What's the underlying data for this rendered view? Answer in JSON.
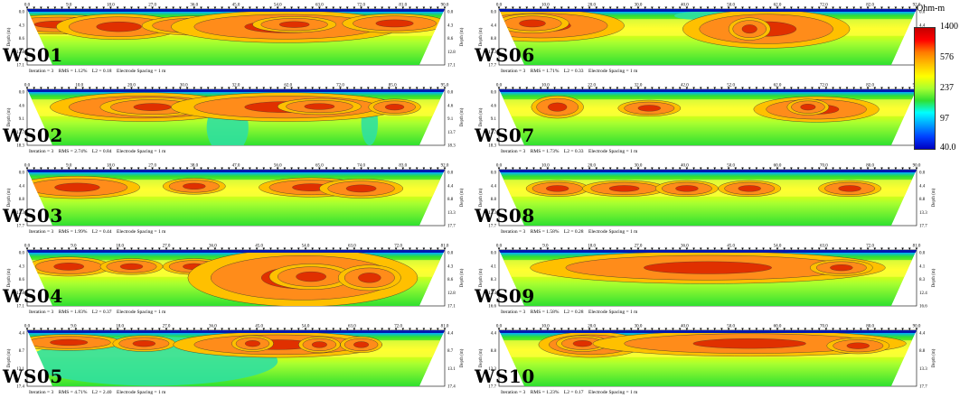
{
  "legend": {
    "title": "Ohm-m",
    "labels": [
      "1400",
      "576",
      "237",
      "97",
      "40.0"
    ],
    "colors": [
      "#c40000",
      "#ff0000",
      "#ff7a00",
      "#ffc000",
      "#ffff00",
      "#a8ff30",
      "#30e030",
      "#00ffff",
      "#00a0ff",
      "#0040ff",
      "#0000c0"
    ]
  },
  "chart_data": [
    {
      "type": "heatmap",
      "name": "WS01",
      "xticks": [
        "0.0",
        "9.0",
        "18.0",
        "27.0",
        "36.0",
        "45.0",
        "54.0",
        "63.0",
        "72.0",
        "81.0",
        "90.0"
      ],
      "ylabel": "Depth (m)",
      "depth_ticks": [
        "0.0",
        "4.3",
        "8.6",
        "12.8",
        "17.1"
      ],
      "iteration": "3",
      "rms": "1.12%",
      "l2": "0.18",
      "electrode_spacing": "1 m",
      "info": "Iteration = 3    RMS = 1.12%    L2 = 0.18    Electrode Spacing = 1 m",
      "bodies": [
        [
          0.08,
          0.18,
          0.14,
          0.06
        ],
        [
          0.22,
          0.22,
          0.12,
          0.08
        ],
        [
          0.4,
          0.2,
          0.1,
          0.06
        ],
        [
          0.62,
          0.22,
          0.22,
          0.1
        ],
        [
          0.64,
          0.18,
          0.08,
          0.05
        ],
        [
          0.88,
          0.16,
          0.1,
          0.06
        ]
      ],
      "low": [
        [
          0.5,
          0.2,
          0.06,
          0.04
        ]
      ]
    },
    {
      "type": "heatmap",
      "name": "WS02",
      "xticks": [
        "0.0",
        "10.0",
        "20.0",
        "30.0",
        "32.0",
        "62.0",
        "72.0",
        "85.0",
        "95.0"
      ],
      "ylabel": "Depth (m)",
      "depth_ticks": [
        "0.0",
        "4.6",
        "9.1",
        "13.7",
        "18.3"
      ],
      "iteration": "3",
      "rms": "2.74%",
      "l2": "0.84",
      "electrode_spacing": "1 m",
      "info": "Iteration = 3    RMS = 2.74%    L2 = 0.84    Electrode Spacing = 1 m",
      "bodies": [
        [
          0.28,
          0.22,
          0.18,
          0.09
        ],
        [
          0.3,
          0.22,
          0.1,
          0.06
        ],
        [
          0.62,
          0.22,
          0.22,
          0.09
        ],
        [
          0.7,
          0.21,
          0.08,
          0.05
        ],
        [
          0.88,
          0.22,
          0.05,
          0.05
        ]
      ],
      "low": [
        [
          0.48,
          0.68,
          0.05,
          0.25
        ],
        [
          0.82,
          0.6,
          0.02,
          0.2
        ]
      ]
    },
    {
      "type": "heatmap",
      "name": "WS03",
      "xticks": [
        "0.0",
        "9.0",
        "18.0",
        "27.0",
        "38.0",
        "47.0",
        "56.0",
        "65.0",
        "74.0",
        "83.0",
        "92.0"
      ],
      "ylabel": "Depth (m)",
      "depth_ticks": [
        "0.0",
        "4.4",
        "8.8",
        "13.3",
        "17.7"
      ],
      "iteration": "3",
      "rms": "1.99%",
      "l2": "0.44",
      "electrode_spacing": "1 m",
      "info": "Iteration = 3    RMS = 1.99%    L2 = 0.44    Electrode Spacing = 1 m",
      "bodies": [
        [
          0.12,
          0.22,
          0.12,
          0.07
        ],
        [
          0.4,
          0.2,
          0.06,
          0.05
        ],
        [
          0.68,
          0.22,
          0.1,
          0.06
        ],
        [
          0.8,
          0.24,
          0.08,
          0.06
        ]
      ],
      "low": []
    },
    {
      "type": "heatmap",
      "name": "WS04",
      "xticks": [
        "0.0",
        "9.0",
        "18.0",
        "27.0",
        "36.0",
        "45.0",
        "54.0",
        "63.0",
        "72.0",
        "81.0"
      ],
      "ylabel": "Depth (m)",
      "depth_ticks": [
        "0.0",
        "4.3",
        "8.6",
        "12.8",
        "17.1"
      ],
      "iteration": "3",
      "rms": "1.83%",
      "l2": "0.37",
      "electrode_spacing": "1 m",
      "info": "Iteration = 3    RMS = 1.83%    L2 = 0.37    Electrode Spacing = 1 m",
      "bodies": [
        [
          0.1,
          0.2,
          0.08,
          0.06
        ],
        [
          0.25,
          0.2,
          0.06,
          0.05
        ],
        [
          0.4,
          0.2,
          0.06,
          0.05
        ],
        [
          0.66,
          0.4,
          0.22,
          0.18
        ],
        [
          0.68,
          0.38,
          0.08,
          0.08
        ],
        [
          0.82,
          0.4,
          0.06,
          0.08
        ]
      ],
      "low": []
    },
    {
      "type": "heatmap",
      "name": "WS05",
      "xticks": [
        "0.0",
        "9.0",
        "18.0",
        "27.0",
        "36.0",
        "45.0",
        "54.0",
        "63.0",
        "72.0",
        "81.0"
      ],
      "ylabel": "Depth (m)",
      "depth_ticks": [
        "4.4",
        "8.7",
        "13.1",
        "17.4"
      ],
      "iteration": "3",
      "rms": "4.71%",
      "l2": "2.40",
      "electrode_spacing": "1 m",
      "info": "Iteration = 3    RMS = 4.71%    L2 = 2.40    Electrode Spacing = 1 m",
      "bodies": [
        [
          0.1,
          0.12,
          0.1,
          0.05
        ],
        [
          0.28,
          0.14,
          0.06,
          0.05
        ],
        [
          0.6,
          0.16,
          0.2,
          0.08
        ],
        [
          0.54,
          0.14,
          0.04,
          0.05
        ],
        [
          0.7,
          0.16,
          0.04,
          0.05
        ],
        [
          0.8,
          0.16,
          0.04,
          0.05
        ]
      ],
      "low": [
        [
          0.3,
          0.55,
          0.3,
          0.22
        ]
      ]
    },
    {
      "type": "heatmap",
      "name": "WS06",
      "xticks": [
        "0.0",
        "10.0",
        "20.0",
        "30.0",
        "40.0",
        "50.0",
        "62.0",
        "72.0",
        "82.0",
        "92.0"
      ],
      "ylabel": "Depth (m)",
      "depth_ticks": [
        "0.0",
        "4.4",
        "8.8",
        "13.3",
        "17.7"
      ],
      "iteration": "3",
      "rms": "1.71%",
      "l2": "0.33",
      "electrode_spacing": "1 m",
      "info": "Iteration = 3    RMS = 1.71%    L2 = 0.33    Electrode Spacing = 1 m",
      "bodies": [
        [
          0.1,
          0.2,
          0.16,
          0.1
        ],
        [
          0.08,
          0.16,
          0.07,
          0.06
        ],
        [
          0.64,
          0.26,
          0.16,
          0.12
        ],
        [
          0.6,
          0.26,
          0.04,
          0.07
        ]
      ],
      "low": [
        [
          0.5,
          0.12,
          0.08,
          0.04
        ]
      ]
    },
    {
      "type": "heatmap",
      "name": "WS07",
      "xticks": [
        "0.0",
        "10.0",
        "22.0",
        "32.0",
        "42.0",
        "52.0",
        "62.0",
        "72.0",
        "82.0",
        "92.0"
      ],
      "ylabel": "Depth (m)",
      "depth_ticks": [
        "0.0",
        "4.6",
        "9.1",
        "13.7",
        "18.3"
      ],
      "iteration": "3",
      "rms": "1.73%",
      "l2": "0.33",
      "electrode_spacing": "1 m",
      "info": "Iteration = 3    RMS = 1.73%    L2 = 0.33    Electrode Spacing = 1 m",
      "bodies": [
        [
          0.14,
          0.22,
          0.05,
          0.07
        ],
        [
          0.36,
          0.24,
          0.06,
          0.05
        ],
        [
          0.76,
          0.26,
          0.12,
          0.08
        ],
        [
          0.74,
          0.22,
          0.04,
          0.05
        ]
      ],
      "low": []
    },
    {
      "type": "heatmap",
      "name": "WS08",
      "xticks": [
        "0.0",
        "10.0",
        "20.0",
        "30.0",
        "40.0",
        "50.0",
        "60.0",
        "70.0",
        "80.0",
        "90.0"
      ],
      "ylabel": "Depth (m)",
      "depth_ticks": [
        "0.0",
        "4.4",
        "8.8",
        "13.3",
        "17.7"
      ],
      "iteration": "3",
      "rms": "1.58%",
      "l2": "0.28",
      "electrode_spacing": "1 m",
      "info": "Iteration = 3    RMS = 1.58%    L2 = 0.28    Electrode Spacing = 1 m",
      "bodies": [
        [
          0.14,
          0.24,
          0.06,
          0.05
        ],
        [
          0.3,
          0.24,
          0.08,
          0.05
        ],
        [
          0.45,
          0.24,
          0.06,
          0.05
        ],
        [
          0.6,
          0.24,
          0.06,
          0.05
        ],
        [
          0.84,
          0.24,
          0.06,
          0.05
        ]
      ],
      "low": []
    },
    {
      "type": "heatmap",
      "name": "WS09",
      "xticks": [
        "0.0",
        "9.0",
        "18.0",
        "27.0",
        "36.0",
        "45.0",
        "54.0",
        "63.0",
        "72.0",
        "81.0"
      ],
      "ylabel": "Depth (m)",
      "depth_ticks": [
        "0.0",
        "4.1",
        "8.3",
        "12.4",
        "16.6"
      ],
      "iteration": "3",
      "rms": "1.58%",
      "l2": "0.28",
      "electrode_spacing": "1 m",
      "info": "Iteration = 3    RMS = 1.58%    L2 = 0.28    Electrode Spacing = 1 m",
      "bodies": [
        [
          0.5,
          0.22,
          0.34,
          0.1
        ],
        [
          0.82,
          0.22,
          0.06,
          0.05
        ]
      ],
      "low": []
    },
    {
      "type": "heatmap",
      "name": "WS10",
      "xticks": [
        "0.0",
        "10.0",
        "20.0",
        "30.0",
        "40.0",
        "50.0",
        "60.0",
        "70.0",
        "80.0",
        "90.0"
      ],
      "ylabel": "Depth (m)",
      "depth_ticks": [
        "4.4",
        "8.8",
        "13.3",
        "17.7"
      ],
      "iteration": "3",
      "rms": "1.23%",
      "l2": "0.17",
      "electrode_spacing": "1 m",
      "info": "Iteration = 3    RMS = 1.23%    L2 = 0.17    Electrode Spacing = 1 m",
      "bodies": [
        [
          0.22,
          0.16,
          0.1,
          0.08
        ],
        [
          0.2,
          0.14,
          0.05,
          0.05
        ],
        [
          0.6,
          0.14,
          0.3,
          0.08
        ],
        [
          0.86,
          0.18,
          0.06,
          0.05
        ]
      ],
      "low": []
    }
  ]
}
